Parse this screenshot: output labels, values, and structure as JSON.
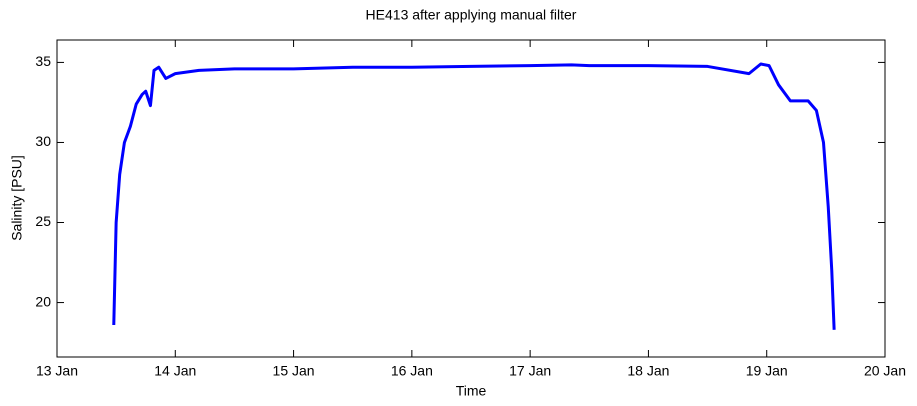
{
  "chart_data": {
    "type": "line",
    "title": "HE413 after applying manual filter",
    "xlabel": "Time",
    "ylabel": "Salinity [PSU]",
    "x": [
      13.48,
      13.5,
      13.53,
      13.57,
      13.62,
      13.67,
      13.72,
      13.75,
      13.79,
      13.82,
      13.86,
      13.92,
      14.0,
      14.2,
      14.5,
      15.0,
      15.5,
      16.0,
      16.5,
      17.0,
      17.35,
      17.5,
      18.0,
      18.5,
      18.85,
      18.95,
      19.02,
      19.1,
      19.2,
      19.35,
      19.42,
      19.48,
      19.52,
      19.55,
      19.57
    ],
    "series": [
      {
        "name": "Salinity",
        "color": "#0000ff",
        "values": [
          18.6,
          25,
          28,
          30,
          31,
          32.4,
          33,
          33.2,
          32.3,
          34.5,
          34.7,
          34.0,
          34.3,
          34.5,
          34.6,
          34.6,
          34.7,
          34.7,
          34.75,
          34.8,
          34.85,
          34.8,
          34.8,
          34.75,
          34.3,
          34.9,
          34.8,
          33.6,
          32.6,
          32.6,
          32,
          30,
          26,
          22,
          18.3
        ]
      }
    ],
    "xlim": [
      13,
      20
    ],
    "xticks": [
      {
        "value": 13,
        "label": "13 Jan"
      },
      {
        "value": 14,
        "label": "14 Jan"
      },
      {
        "value": 15,
        "label": "15 Jan"
      },
      {
        "value": 16,
        "label": "16 Jan"
      },
      {
        "value": 17,
        "label": "17 Jan"
      },
      {
        "value": 18,
        "label": "18 Jan"
      },
      {
        "value": 19,
        "label": "19 Jan"
      },
      {
        "value": 20,
        "label": "20 Jan"
      }
    ],
    "ylim": [
      16.6,
      36.4
    ],
    "yticks": [
      20,
      25,
      30,
      35
    ],
    "grid": false
  }
}
